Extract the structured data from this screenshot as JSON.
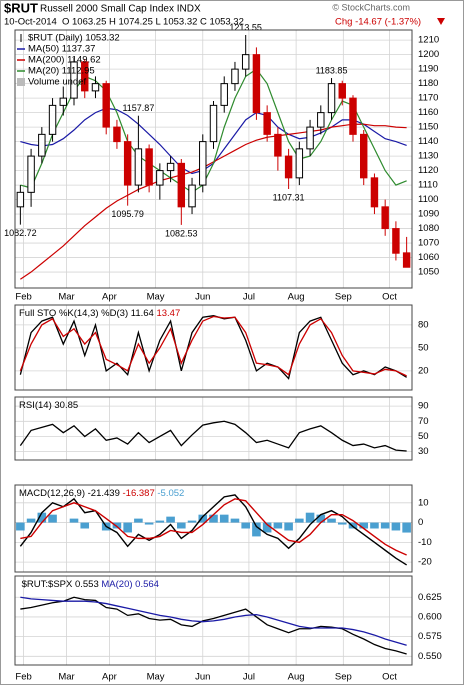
{
  "header": {
    "symbol": "$RUT",
    "name": "Russell 2000 Small Cap Index INDX",
    "date": "10-Oct-2014",
    "quote": "O 1063.25  H 1074.25  L 1053.32  C 1053.32",
    "change": "Chg -14.67 (-1.37%)"
  },
  "watermark": "© StockCharts.com",
  "chart_data": [
    {
      "type": "candlestick",
      "name": "$RUT (Daily) 1053.32",
      "volume_label": "Volume undef",
      "up_color": "#000000",
      "down_color": "#cc0000",
      "x": [
        0,
        1,
        2,
        3,
        4,
        5,
        6,
        7,
        8,
        9,
        10,
        11,
        12,
        13,
        14,
        15,
        16,
        17,
        18,
        19,
        20,
        21,
        22,
        23,
        24,
        25,
        26,
        27,
        28,
        29,
        30,
        31,
        32,
        33,
        34,
        35,
        36
      ],
      "xlim": [
        -0.5,
        36.5
      ],
      "xticks": [
        {
          "value": 0.3,
          "label": "Feb"
        },
        {
          "value": 4.3,
          "label": "Mar"
        },
        {
          "value": 8.3,
          "label": "Apr"
        },
        {
          "value": 12.6,
          "label": "May"
        },
        {
          "value": 17,
          "label": "Jun"
        },
        {
          "value": 21.3,
          "label": "Jul"
        },
        {
          "value": 25.7,
          "label": "Aug"
        },
        {
          "value": 30.1,
          "label": "Sep"
        },
        {
          "value": 34.4,
          "label": "Oct"
        }
      ],
      "open": [
        1095,
        1105,
        1130,
        1145,
        1165,
        1170,
        1195,
        1175,
        1180,
        1150,
        1140,
        1110,
        1135,
        1110,
        1120,
        1125,
        1095,
        1110,
        1140,
        1165,
        1180,
        1190,
        1200,
        1160,
        1145,
        1130,
        1115,
        1135,
        1150,
        1160,
        1180,
        1170,
        1145,
        1115,
        1095,
        1080,
        1063.25
      ],
      "high": [
        1110,
        1135,
        1150,
        1170,
        1178,
        1198,
        1197,
        1185,
        1182,
        1155,
        1145,
        1157.87,
        1138,
        1125,
        1130,
        1128,
        1115,
        1145,
        1168,
        1185,
        1195,
        1213.55,
        1205,
        1165,
        1150,
        1135,
        1140,
        1155,
        1165,
        1183.85,
        1182,
        1172,
        1148,
        1118,
        1100,
        1085,
        1074.25
      ],
      "low": [
        1082.72,
        1095,
        1125,
        1140,
        1158,
        1165,
        1170,
        1170,
        1145,
        1135,
        1095.79,
        1105,
        1105,
        1100,
        1112,
        1082.53,
        1090,
        1105,
        1135,
        1160,
        1175,
        1185,
        1155,
        1140,
        1120,
        1107.31,
        1110,
        1130,
        1145,
        1155,
        1165,
        1140,
        1110,
        1090,
        1075,
        1058,
        1053.32
      ],
      "close": [
        1105,
        1130,
        1145,
        1165,
        1170,
        1195,
        1175,
        1180,
        1150,
        1140,
        1110,
        1135,
        1110,
        1120,
        1125,
        1095,
        1110,
        1140,
        1165,
        1180,
        1190,
        1200,
        1160,
        1145,
        1130,
        1115,
        1135,
        1150,
        1160,
        1180,
        1170,
        1145,
        1115,
        1095,
        1080,
        1063,
        1053.32
      ],
      "series": [
        {
          "name": "MA(50) 1137.37",
          "color": "#1a1aa6",
          "values": [
            1140,
            1138,
            1137,
            1138,
            1142,
            1148,
            1155,
            1160,
            1163,
            1162,
            1158,
            1152,
            1145,
            1138,
            1130,
            1122,
            1118,
            1120,
            1125,
            1135,
            1145,
            1155,
            1160,
            1158,
            1150,
            1145,
            1142,
            1143,
            1146,
            1150,
            1155,
            1155,
            1152,
            1147,
            1142,
            1140,
            1137.37
          ]
        },
        {
          "name": "MA(200) 1149.62",
          "color": "#cc0000",
          "values": [
            1045,
            1050,
            1056,
            1062,
            1068,
            1075,
            1082,
            1088,
            1094,
            1099,
            1103,
            1107,
            1110,
            1113,
            1115,
            1117,
            1119,
            1122,
            1126,
            1130,
            1134,
            1138,
            1141,
            1143,
            1144,
            1145,
            1146,
            1147,
            1148,
            1150,
            1151,
            1152,
            1152,
            1151,
            1151,
            1150,
            1149.62
          ]
        },
        {
          "name": "MA(20) 1112.95",
          "color": "#2e8b2e",
          "values": [
            1110,
            1108,
            1125,
            1145,
            1160,
            1175,
            1185,
            1182,
            1175,
            1160,
            1140,
            1130,
            1125,
            1120,
            1115,
            1110,
            1105,
            1110,
            1125,
            1150,
            1170,
            1185,
            1190,
            1180,
            1160,
            1140,
            1128,
            1130,
            1140,
            1155,
            1168,
            1165,
            1150,
            1135,
            1120,
            1110,
            1112.95
          ]
        }
      ],
      "annotations": [
        {
          "x": 0,
          "value": 1082.72
        },
        {
          "x": 11,
          "value": 1157.87
        },
        {
          "x": 10,
          "value": 1095.79
        },
        {
          "x": 15,
          "value": 1082.53
        },
        {
          "x": 21,
          "value": 1213.55
        },
        {
          "x": 29,
          "value": 1183.85
        },
        {
          "x": 25,
          "value": 1107.31
        }
      ],
      "ylim": [
        1039,
        1217
      ],
      "yticks": [
        1050,
        1060,
        1070,
        1080,
        1090,
        1100,
        1110,
        1120,
        1130,
        1140,
        1150,
        1160,
        1170,
        1180,
        1190,
        1200,
        1210
      ],
      "grid": true
    },
    {
      "type": "line",
      "title": "Full STO %K(14,3) %D(3)",
      "series": [
        {
          "name": "11.64",
          "color": "#000000",
          "values": [
            15,
            70,
            85,
            90,
            55,
            85,
            40,
            80,
            20,
            30,
            15,
            70,
            20,
            60,
            85,
            20,
            70,
            90,
            92,
            88,
            90,
            60,
            20,
            30,
            25,
            10,
            70,
            85,
            90,
            60,
            30,
            15,
            20,
            15,
            25,
            20,
            11.64
          ]
        },
        {
          "name": "13.47",
          "color": "#cc0000",
          "values": [
            20,
            55,
            80,
            88,
            65,
            75,
            55,
            70,
            35,
            28,
            20,
            55,
            30,
            50,
            75,
            30,
            60,
            85,
            91,
            89,
            90,
            70,
            30,
            28,
            25,
            15,
            55,
            80,
            88,
            70,
            40,
            20,
            18,
            16,
            22,
            20,
            13.47
          ]
        }
      ],
      "ylim": [
        -5,
        106
      ],
      "yticks": [
        20,
        50,
        80
      ],
      "grid": true
    },
    {
      "type": "line",
      "title": "RSI(14)",
      "series": [
        {
          "name": "30.85",
          "color": "#000000",
          "values": [
            38,
            58,
            62,
            66,
            55,
            64,
            50,
            60,
            45,
            48,
            40,
            55,
            42,
            50,
            58,
            38,
            52,
            65,
            68,
            70,
            66,
            55,
            42,
            45,
            40,
            35,
            55,
            60,
            64,
            55,
            45,
            38,
            40,
            35,
            38,
            32,
            30.85
          ]
        }
      ],
      "ylim": [
        19,
        102
      ],
      "yticks": [
        30,
        50,
        70,
        90
      ],
      "grid": true
    },
    {
      "type": "combo",
      "title": "MACD(12,26,9)",
      "series": [
        {
          "name": "-21.439",
          "color": "#000000",
          "style": "line",
          "values": [
            -12,
            -5,
            5,
            10,
            8,
            12,
            5,
            6,
            -2,
            -5,
            -12,
            -6,
            -9,
            -6,
            -1,
            -8,
            -4,
            3,
            8,
            13,
            14,
            8,
            -2,
            -6,
            -8,
            -13,
            -8,
            -1,
            4,
            6,
            3,
            -2,
            -6,
            -10,
            -14,
            -18,
            -21.439
          ]
        },
        {
          "name": "-16.387",
          "color": "#cc0000",
          "style": "line",
          "values": [
            -8,
            -7,
            0,
            6,
            8,
            10,
            8,
            6,
            2,
            -2,
            -7,
            -8,
            -8,
            -7,
            -4,
            -5,
            -5,
            -1,
            4,
            9,
            12,
            11,
            5,
            -1,
            -5,
            -9,
            -10,
            -6,
            0,
            4,
            4,
            1,
            -3,
            -7,
            -11,
            -14,
            -16.387
          ]
        },
        {
          "name": "-5.052",
          "color": "#4a9fd0",
          "style": "bar",
          "values": [
            -4,
            2,
            5,
            4,
            0,
            2,
            -3,
            0,
            -4,
            -3,
            -5,
            2,
            -1,
            1,
            3,
            -3,
            1,
            4,
            4,
            4,
            2,
            -3,
            -7,
            -5,
            -3,
            -4,
            2,
            5,
            4,
            2,
            -1,
            -3,
            -3,
            -3,
            -3,
            -4,
            -5.052
          ]
        }
      ],
      "ylim": [
        -25,
        19
      ],
      "yticks": [
        -20,
        -10,
        0,
        10
      ],
      "grid": true
    },
    {
      "type": "line",
      "series": [
        {
          "name": "$RUT:$SPX 0.553",
          "color": "#000000",
          "values": [
            0.61,
            0.612,
            0.615,
            0.618,
            0.62,
            0.625,
            0.622,
            0.621,
            0.612,
            0.61,
            0.602,
            0.604,
            0.598,
            0.596,
            0.597,
            0.59,
            0.588,
            0.595,
            0.598,
            0.602,
            0.606,
            0.61,
            0.6,
            0.59,
            0.585,
            0.58,
            0.585,
            0.585,
            0.588,
            0.587,
            0.585,
            0.578,
            0.572,
            0.565,
            0.56,
            0.557,
            0.553
          ]
        },
        {
          "name": "MA(20) 0.564",
          "color": "#1a1aa6",
          "values": [
            0.625,
            0.623,
            0.622,
            0.621,
            0.62,
            0.62,
            0.62,
            0.619,
            0.617,
            0.614,
            0.611,
            0.608,
            0.605,
            0.602,
            0.6,
            0.597,
            0.595,
            0.594,
            0.595,
            0.597,
            0.6,
            0.602,
            0.603,
            0.6,
            0.596,
            0.592,
            0.588,
            0.586,
            0.586,
            0.586,
            0.586,
            0.584,
            0.581,
            0.577,
            0.572,
            0.568,
            0.564
          ]
        }
      ],
      "ylim": [
        0.539,
        0.652
      ],
      "yticks": [
        {
          "value": 0.55,
          "label": "0.550"
        },
        0.575,
        {
          "value": 0.6,
          "label": "0.600"
        },
        0.625
      ],
      "grid": true
    }
  ]
}
